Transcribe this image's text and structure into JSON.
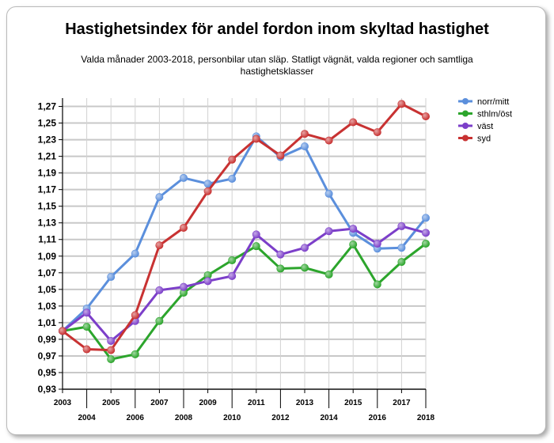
{
  "chart_data": {
    "type": "line",
    "title": "Hastighetsindex för andel fordon inom skyltad hastighet",
    "subtitle": "Valda månader 2003-2018, personbilar utan släp. Statligt vägnät, valda regioner och samtliga hastighetsklasser",
    "x": [
      "2003",
      "2004",
      "2005",
      "2006",
      "2007",
      "2008",
      "2009",
      "2010",
      "2011",
      "2012",
      "2013",
      "2014",
      "2015",
      "2016",
      "2017",
      "2018"
    ],
    "ylim": [
      0.93,
      1.28
    ],
    "yticks": [
      "0,93",
      "0,95",
      "0,97",
      "0,99",
      "1,01",
      "1,03",
      "1,05",
      "1,07",
      "1,09",
      "1,11",
      "1,13",
      "1,15",
      "1,17",
      "1,19",
      "1,21",
      "1,23",
      "1,25",
      "1,27"
    ],
    "grid": true,
    "legend_position": "right",
    "series": [
      {
        "name": "norr/mitt",
        "color": "#5b8fdc",
        "values": [
          1.0,
          1.027,
          1.065,
          1.093,
          1.161,
          1.184,
          1.177,
          1.183,
          1.234,
          1.209,
          1.222,
          1.165,
          1.118,
          1.099,
          1.1,
          1.136
        ]
      },
      {
        "name": "sthlm/öst",
        "color": "#2ca52c",
        "values": [
          1.0,
          1.005,
          0.966,
          0.972,
          1.012,
          1.046,
          1.067,
          1.085,
          1.102,
          1.075,
          1.076,
          1.068,
          1.104,
          1.056,
          1.083,
          1.105
        ]
      },
      {
        "name": "väst",
        "color": "#7c3fc9",
        "values": [
          1.0,
          1.022,
          0.988,
          1.012,
          1.049,
          1.053,
          1.06,
          1.066,
          1.116,
          1.092,
          1.1,
          1.12,
          1.123,
          1.105,
          1.126,
          1.118
        ]
      },
      {
        "name": "syd",
        "color": "#c83232",
        "values": [
          1.0,
          0.978,
          0.977,
          1.019,
          1.103,
          1.124,
          1.168,
          1.206,
          1.231,
          1.211,
          1.237,
          1.229,
          1.251,
          1.239,
          1.273,
          1.258
        ]
      }
    ]
  }
}
